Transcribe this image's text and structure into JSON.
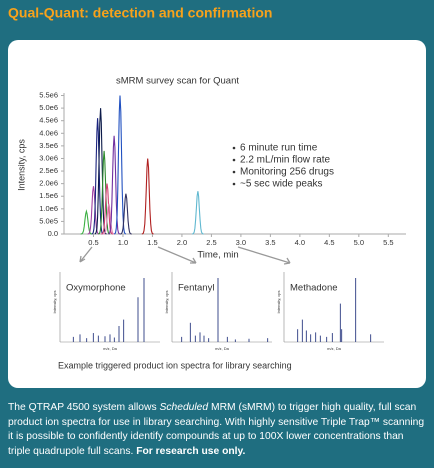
{
  "title": "Qual-Quant: detection and confirmation",
  "chart_data": {
    "type": "peaks",
    "title": "sMRM survey scan for Quant",
    "x_label": "Time, min",
    "y_label": "Intensity, cps",
    "xlim": [
      0,
      5.8
    ],
    "ylim": [
      0,
      5600000
    ],
    "xticks": [
      0.5,
      {
        "value": 1,
        "label": "1.0"
      },
      1.5,
      {
        "value": 2,
        "label": "2.0"
      },
      2.5,
      {
        "value": 3,
        "label": "3.0"
      },
      3.5,
      {
        "value": 4,
        "label": "4.0"
      },
      4.5,
      {
        "value": 5,
        "label": "5.0"
      },
      5.5
    ],
    "yticks": [
      {
        "value": 0,
        "label": "0.0"
      },
      {
        "value": 500000,
        "label": "5.0e5"
      },
      {
        "value": 1000000,
        "label": "1.0e6"
      },
      {
        "value": 1500000,
        "label": "1.5e6"
      },
      {
        "value": 2000000,
        "label": "2.0e6"
      },
      {
        "value": 2500000,
        "label": "2.5e6"
      },
      {
        "value": 3000000,
        "label": "3.0e6"
      },
      {
        "value": 3500000,
        "label": "3.5e6"
      },
      {
        "value": 4000000,
        "label": "4.0e6"
      },
      {
        "value": 4500000,
        "label": "4.5e6"
      },
      {
        "value": 5000000,
        "label": "5.0e6"
      },
      {
        "value": 5500000,
        "label": "5.5e6"
      }
    ],
    "x": [
      0.38,
      0.5,
      0.57,
      0.62,
      0.68,
      0.73,
      0.76,
      0.85,
      0.95,
      1.05,
      1.42,
      2.27
    ],
    "values": [
      900000,
      1900000,
      4600000,
      5000000,
      3300000,
      2000000,
      1200000,
      3900000,
      5500000,
      1600000,
      3000000,
      1700000
    ],
    "colors": [
      "#3cb043",
      "#a040a0",
      "#1a237e",
      "#0d1b4a",
      "#2e8b2e",
      "#d04070",
      "#e080b0",
      "#7030a0",
      "#2050c0",
      "#303060",
      "#b02020",
      "#60b8d0"
    ]
  },
  "bullets": [
    "6 minute run time",
    "2.2 mL/min flow rate",
    "Monitoring 256 drugs",
    "~5 sec wide peaks"
  ],
  "spectra": {
    "x_label": "m/z, Da",
    "y_label": "Intensity, cps",
    "xlim": [
      50,
      350
    ],
    "ylim": [
      0,
      100
    ],
    "items": [
      {
        "name": "Oxymorphone",
        "x": [
          90,
          110,
          130,
          150,
          165,
          185,
          200,
          213,
          227,
          241,
          284,
          302
        ],
        "values": [
          8,
          12,
          6,
          14,
          10,
          9,
          12,
          7,
          25,
          35,
          70,
          100
        ]
      },
      {
        "name": "Fentanyl",
        "x": [
          79,
          105,
          120,
          134,
          146,
          160,
          188,
          216,
          240,
          281,
          337
        ],
        "values": [
          8,
          30,
          10,
          15,
          10,
          6,
          100,
          8,
          4,
          5,
          6
        ]
      },
      {
        "name": "Methadone",
        "x": [
          91,
          105,
          117,
          130,
          145,
          159,
          178,
          195,
          219,
          223,
          265,
          310
        ],
        "values": [
          20,
          35,
          18,
          12,
          15,
          10,
          8,
          14,
          60,
          20,
          100,
          12
        ]
      }
    ]
  },
  "caption": "Example triggered product ion spectra for library searching",
  "body": [
    "The QTRAP 4500 system allows ",
    "Scheduled",
    " MRM (sMRM) to trigger high quality, full scan product ion spectra for use in library searching. With highly sensitive Triple Trap™ scanning it is possible to confidently identify compounds at up to 100X lower concentrations than triple quadrupole full scans. ",
    "For research use only."
  ]
}
